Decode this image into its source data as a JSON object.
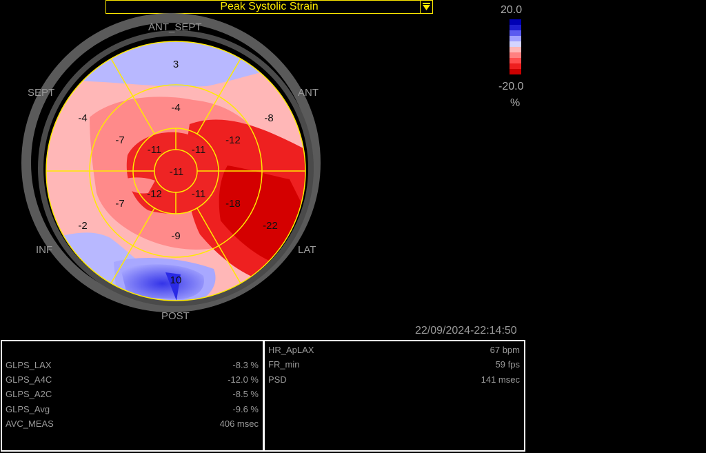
{
  "header": {
    "title": "Peak Systolic Strain"
  },
  "wall_labels": {
    "ant_sept": "ANT_SEPT",
    "sept": "SEPT",
    "ant": "ANT",
    "inf": "INF",
    "lat": "LAT",
    "post": "POST"
  },
  "segments": {
    "basal": [
      "3",
      "-8",
      "-22",
      "10",
      "-2",
      "-4"
    ],
    "mid": [
      "-4",
      "-12",
      "-18",
      "-9",
      "-7",
      "-7"
    ],
    "apical": [
      "-11",
      "-11",
      "-12",
      "-11"
    ],
    "apex": "-11"
  },
  "scale": {
    "max": "20.0",
    "min": "-20.0",
    "unit": "%",
    "colors": [
      "#0000b4",
      "#1e1ecf",
      "#5a5af0",
      "#a0a0ff",
      "#d4d4ff",
      "#ffb5b5",
      "#ff8080",
      "#ff4d4d",
      "#ee1f1f",
      "#cc0000"
    ]
  },
  "timestamp": "22/09/2024-22:14:50",
  "left_panel": [
    {
      "label": "GLPS_LAX",
      "value": "-8.3 %"
    },
    {
      "label": "GLPS_A4C",
      "value": "-12.0 %"
    },
    {
      "label": "GLPS_A2C",
      "value": "-8.5 %"
    },
    {
      "label": "GLPS_Avg",
      "value": "-9.6 %"
    },
    {
      "label": "AVC_MEAS",
      "value": "406 msec"
    }
  ],
  "right_panel": [
    {
      "label": "HR_ApLAX",
      "value": "67 bpm"
    },
    {
      "label": "FR_min",
      "value": "59 fps"
    },
    {
      "label": "PSD",
      "value": "141 msec"
    }
  ]
}
